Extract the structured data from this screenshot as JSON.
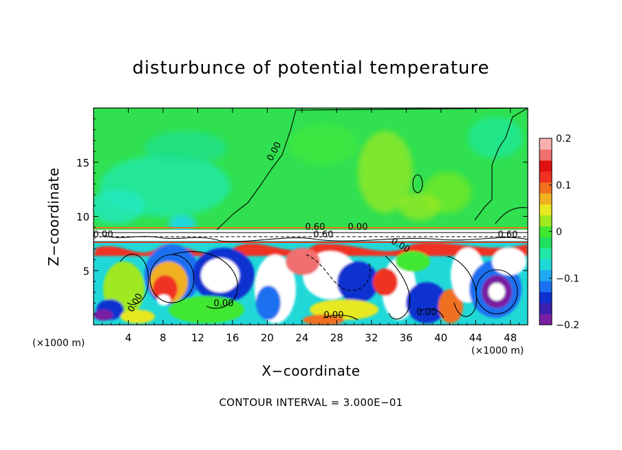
{
  "chart_data": {
    "type": "heatmap",
    "title": "disturbunce of potential temperature",
    "xlabel": "X−coordinate",
    "ylabel": "Z−coordinate",
    "x_unit_left": "(×1000 m)",
    "x_unit_right": "(×1000 m)",
    "xlim": [
      0,
      50
    ],
    "ylim": [
      0,
      20
    ],
    "x_ticks": [
      4,
      8,
      12,
      16,
      20,
      24,
      28,
      32,
      36,
      40,
      44,
      48
    ],
    "x_tick_labels": [
      "4",
      "8",
      "12",
      "16",
      "20",
      "24",
      "28",
      "32",
      "36",
      "40",
      "44",
      "48"
    ],
    "y_ticks": [
      5,
      10,
      15
    ],
    "y_tick_labels": [
      "5",
      "10",
      "15"
    ],
    "colorbar": {
      "range": [
        -0.2,
        0.2
      ],
      "ticks": [
        0.2,
        0.1,
        0,
        -0.1,
        -0.2
      ],
      "tick_labels": [
        "0.2",
        "0.1",
        "0",
        "−0.1",
        "−0.2"
      ],
      "colors": [
        "#7a1fa2",
        "#3a1fb0",
        "#1030d0",
        "#1a70f0",
        "#20a8f0",
        "#20d8d8",
        "#20e8a8",
        "#20e060",
        "#40e830",
        "#a0e820",
        "#e8e820",
        "#f0b020",
        "#f07020",
        "#f03020",
        "#e01010",
        "#f07070",
        "#f8b0b0"
      ]
    },
    "contour_labels": [
      "0.00",
      "0.00",
      "0.60",
      "0.00",
      "0.60",
      "0.60",
      "0.00",
      "0.00",
      "0.00",
      "0.00",
      "0.00"
    ],
    "footer": "CONTOUR INTERVAL = 3.000E−01",
    "grid": false
  }
}
